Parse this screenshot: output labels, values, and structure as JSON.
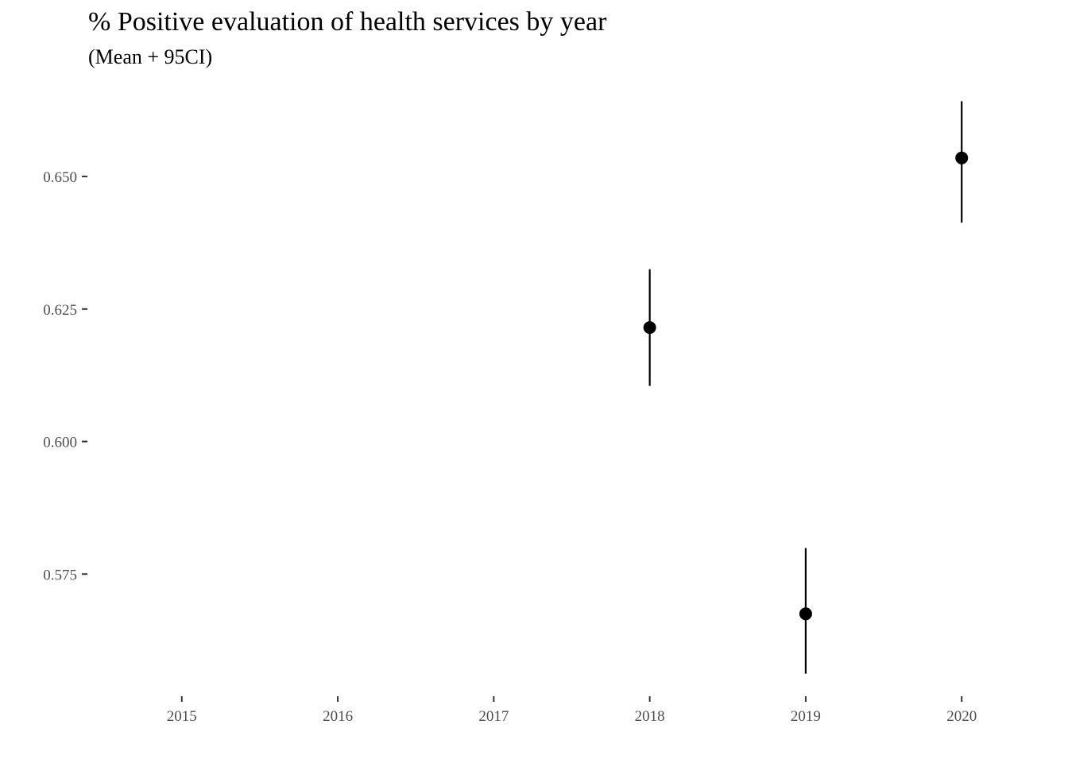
{
  "chart_data": {
    "type": "scatter",
    "title": "% Positive evaluation of health services by year",
    "subtitle": "(Mean + 95CI)",
    "xlabel": "",
    "ylabel": "",
    "x_ticks": [
      2015,
      2016,
      2017,
      2018,
      2019,
      2020
    ],
    "x_tick_labels": [
      "2015",
      "2016",
      "2017",
      "2018",
      "2019",
      "2020"
    ],
    "y_ticks": [
      0.575,
      0.6,
      0.625,
      0.65
    ],
    "y_tick_labels": [
      "0.575",
      "0.600",
      "0.625",
      "0.650"
    ],
    "xlim": [
      2014.4,
      2020.6
    ],
    "ylim": [
      0.5521,
      0.6665
    ],
    "grid": false,
    "legend": "none",
    "points": [
      {
        "x": 2018,
        "mean": 0.6215,
        "lower": 0.6105,
        "upper": 0.6325
      },
      {
        "x": 2019,
        "mean": 0.5675,
        "lower": 0.5562,
        "upper": 0.5799
      },
      {
        "x": 2020,
        "mean": 0.6535,
        "lower": 0.6413,
        "upper": 0.6642
      }
    ],
    "colors": {
      "point": "#000000",
      "errorbar": "#000000",
      "tick_label": "#4d4d4d",
      "tick_mark": "#333333"
    }
  }
}
